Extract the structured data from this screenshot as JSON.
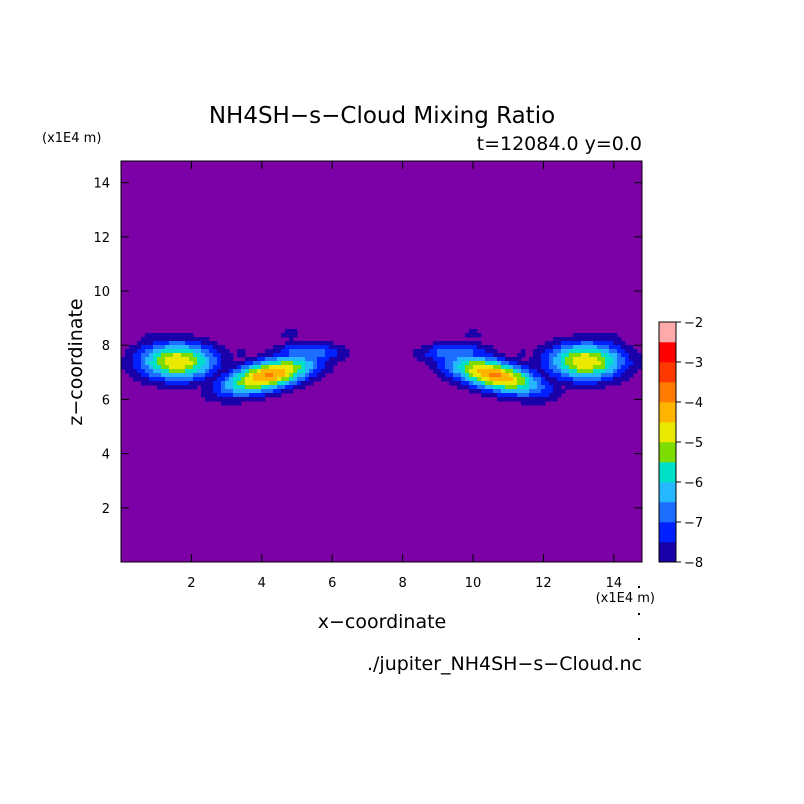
{
  "chart_data": {
    "type": "heatmap",
    "title": "NH4SH−s−Cloud Mixing Ratio",
    "subtitle": "t=12084.0 y=0.0",
    "xlabel": "x−coordinate",
    "ylabel": "z−coordinate",
    "x_unit_label": "(x1E4 m)",
    "y_unit_label": "(x1E4 m)",
    "source_file": "./jupiter_NH4SH−s−Cloud.nc",
    "xlim": [
      0,
      14.8
    ],
    "ylim": [
      0,
      14.8
    ],
    "x_ticks": [
      "2",
      "4",
      "6",
      "8",
      "10",
      "12",
      "14"
    ],
    "y_ticks": [
      "2",
      "4",
      "6",
      "8",
      "10",
      "12",
      "14"
    ],
    "x_tick_values": [
      2,
      4,
      6,
      8,
      10,
      12,
      14
    ],
    "y_tick_values": [
      2,
      4,
      6,
      8,
      10,
      12,
      14
    ],
    "background_level": -8,
    "colorbar": {
      "min": -8,
      "max": -2,
      "tick_labels": [
        "−2",
        "−3",
        "−4",
        "−5",
        "−6",
        "−7",
        "−8"
      ],
      "tick_values": [
        -2,
        -3,
        -4,
        -5,
        -6,
        -7,
        -8
      ],
      "level_step": 0.5,
      "colors": [
        "#7b00a6",
        "#1a00a8",
        "#0020ff",
        "#1d6dff",
        "#25b7ff",
        "#00e0c8",
        "#7ddd00",
        "#e8e800",
        "#ffb400",
        "#ff7a00",
        "#ff3800",
        "#ff0000",
        "#ffaaaa"
      ]
    },
    "contour_levels": [
      -7.5,
      -7,
      -6.5,
      -6,
      -5.5,
      -5,
      -4.5,
      -4,
      -3.5
    ],
    "cloud_blobs": [
      {
        "x": 1.6,
        "z": 7.4,
        "peak": -4.0,
        "rx": 1.1,
        "rz": 0.7
      },
      {
        "x": 1.1,
        "z": 8.2,
        "peak": -7.0,
        "rx": 0.6,
        "rz": 0.35
      },
      {
        "x": 4.2,
        "z": 6.9,
        "peak": -3.4,
        "rx": 1.4,
        "rz": 0.55,
        "tilt": 0.35
      },
      {
        "x": 5.3,
        "z": 7.7,
        "peak": -6.0,
        "rx": 1.0,
        "rz": 0.4
      },
      {
        "x": 4.8,
        "z": 8.4,
        "peak": -7.2,
        "rx": 0.35,
        "rz": 0.25
      },
      {
        "x": 3.4,
        "z": 7.7,
        "peak": -7.3,
        "rx": 0.28,
        "rz": 0.18
      },
      {
        "x": 6.3,
        "z": 7.8,
        "peak": -7.3,
        "rx": 0.35,
        "rz": 0.22
      },
      {
        "x": 8.5,
        "z": 7.8,
        "peak": -7.3,
        "rx": 0.35,
        "rz": 0.22
      },
      {
        "x": 10.6,
        "z": 6.9,
        "peak": -3.4,
        "rx": 1.4,
        "rz": 0.55,
        "tilt": -0.35
      },
      {
        "x": 9.5,
        "z": 7.7,
        "peak": -6.0,
        "rx": 1.0,
        "rz": 0.4
      },
      {
        "x": 10.0,
        "z": 8.4,
        "peak": -7.2,
        "rx": 0.35,
        "rz": 0.25
      },
      {
        "x": 11.4,
        "z": 7.7,
        "peak": -7.3,
        "rx": 0.28,
        "rz": 0.18
      },
      {
        "x": 13.2,
        "z": 7.4,
        "peak": -4.0,
        "rx": 1.1,
        "rz": 0.7
      },
      {
        "x": 13.7,
        "z": 8.2,
        "peak": -7.0,
        "rx": 0.6,
        "rz": 0.35
      }
    ]
  }
}
